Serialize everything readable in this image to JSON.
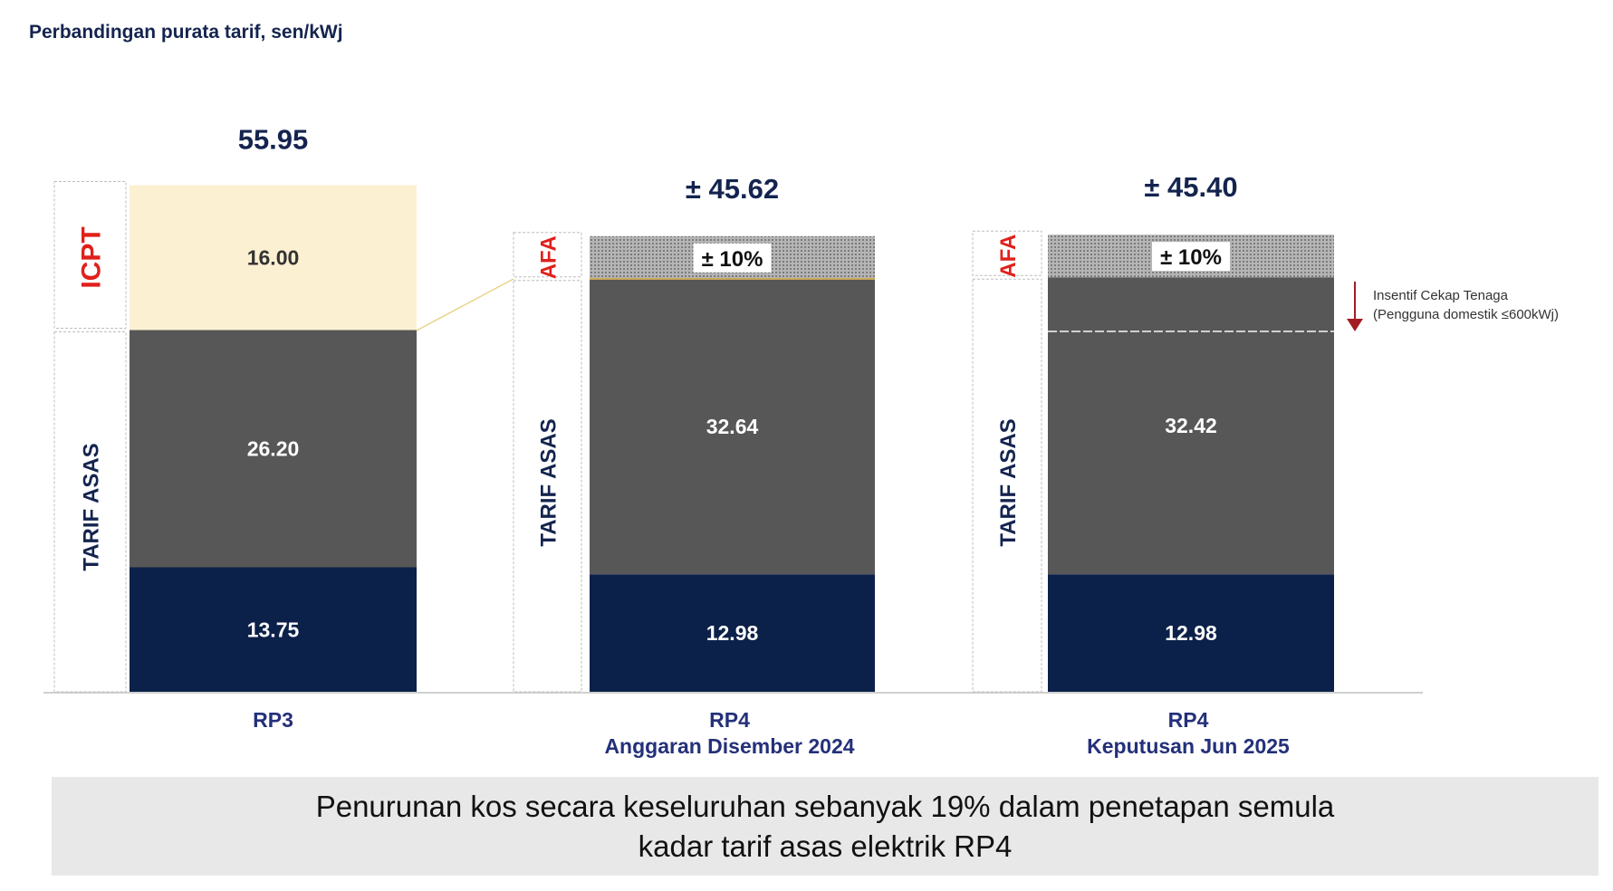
{
  "title": "Perbandingan purata tarif, sen/kWj",
  "chart_data": {
    "type": "bar",
    "stacked": true,
    "title": "Perbandingan purata tarif, sen/kWj",
    "categories": [
      {
        "line1": "RP3",
        "line2": ""
      },
      {
        "line1": "RP4",
        "line2": "Anggaran Disember 2024"
      },
      {
        "line1": "RP4",
        "line2": "Keputusan Jun 2025"
      }
    ],
    "totals": [
      "55.95",
      "± 45.62",
      "± 45.40"
    ],
    "bars": [
      {
        "segments": [
          {
            "label": "13.75",
            "value": 13.75,
            "color": "#0c2149"
          },
          {
            "label": "26.20",
            "value": 26.2,
            "color": "#575757"
          },
          {
            "label": "16.00",
            "value": 16.0,
            "color": "#fcf0d2"
          }
        ],
        "group_labels": {
          "top": "ICPT",
          "bottom": "TARIF ASAS"
        }
      },
      {
        "segments": [
          {
            "label": "12.98",
            "value": 12.98,
            "color": "#0c2149"
          },
          {
            "label": "32.64",
            "value": 32.64,
            "color": "#575757"
          },
          {
            "label": "± 10%",
            "value": null,
            "color": "#a8a8a8",
            "pattern": "hatched"
          }
        ],
        "group_labels": {
          "top": "AFA",
          "bottom": "TARIF ASAS"
        }
      },
      {
        "segments": [
          {
            "label": "12.98",
            "value": 12.98,
            "color": "#0c2149"
          },
          {
            "label": "32.42",
            "value": 32.42,
            "color": "#575757"
          },
          {
            "label": "± 10%",
            "value": null,
            "color": "#a8a8a8",
            "pattern": "hatched"
          }
        ],
        "group_labels": {
          "top": "AFA",
          "bottom": "TARIF ASAS"
        }
      }
    ],
    "annotation": {
      "line1": "Insentif Cekap Tenaga",
      "line2": "(Pengguna domestik ≤600kWj)",
      "arrow_color": "#a31c24"
    },
    "label_colors": {
      "icpt_afa": "#e0201b",
      "tarif_asas": "#14244f",
      "category": "#24307a"
    },
    "grid": false
  },
  "summary": {
    "line1": "Penurunan kos secara keseluruhan sebanyak 19% dalam penetapan semula",
    "line2": "kadar tarif asas elektrik RP4"
  }
}
